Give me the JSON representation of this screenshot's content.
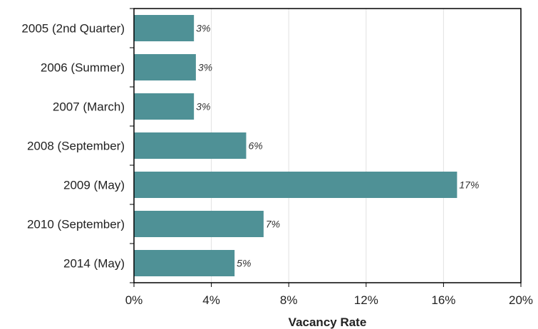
{
  "chart_data": {
    "type": "bar",
    "orientation": "horizontal",
    "title": "",
    "xlabel": "Vacancy Rate",
    "ylabel": "",
    "categories": [
      "2005 (2nd Quarter)",
      "2006 (Summer)",
      "2007 (March)",
      "2008 (September)",
      "2009 (May)",
      "2010 (September)",
      "2014 (May)"
    ],
    "values": [
      3.1,
      3.2,
      3.1,
      5.8,
      16.7,
      6.7,
      5.2
    ],
    "data_labels": [
      "3%",
      "3%",
      "3%",
      "6%",
      "17%",
      "7%",
      "5%"
    ],
    "xlim": [
      0,
      20
    ],
    "xticks": [
      0,
      4,
      8,
      12,
      16,
      20
    ],
    "xtick_labels": [
      "0%",
      "4%",
      "8%",
      "12%",
      "16%",
      "20%"
    ],
    "grid": true,
    "legend": "none",
    "bar_color": "#4f9196"
  }
}
